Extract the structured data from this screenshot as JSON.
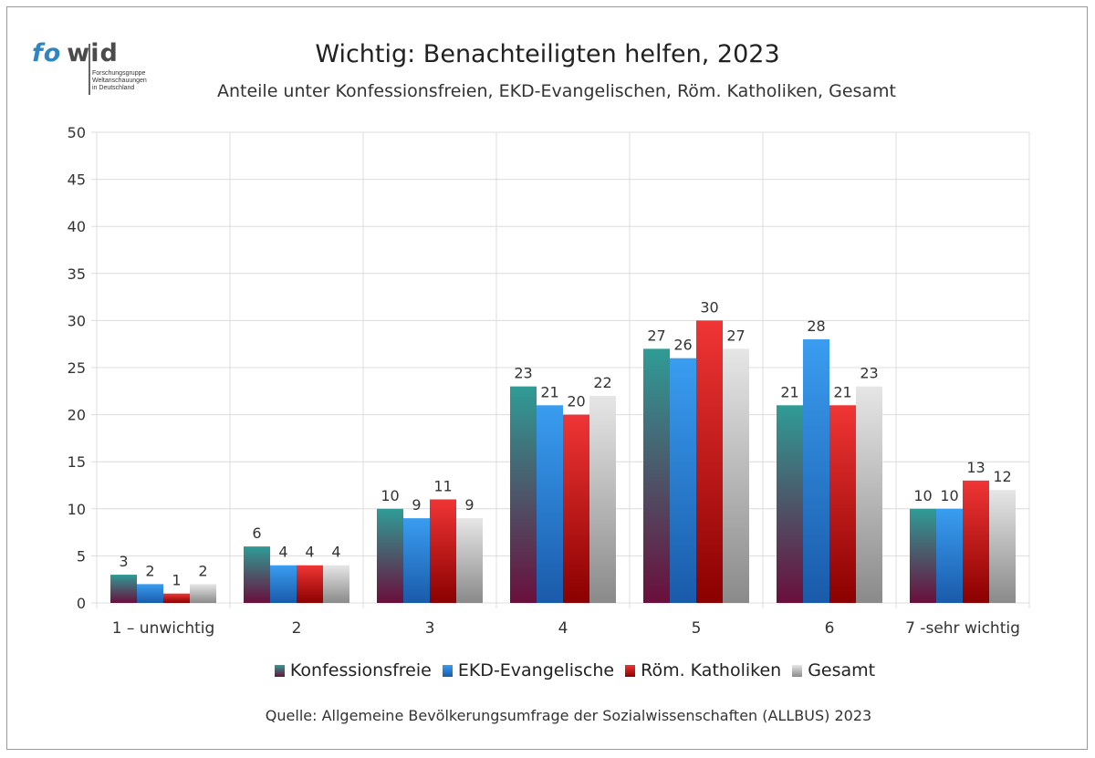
{
  "logo": {
    "word_a": "fo",
    "word_b": "wid",
    "line1": "Forschungsgruppe",
    "line2": "Weltanschauungen",
    "line3": "in Deutschland"
  },
  "header": {
    "title": "Wichtig: Benachteiligten helfen, 2023",
    "subtitle": "Anteile unter Konfessionsfreien, EKD-Evangelischen, Röm. Katholiken, Gesamt"
  },
  "source": "Quelle: Allgemeine Bevölkerungsumfrage der Sozialwissenschaften (ALLBUS) 2023",
  "chart_data": {
    "type": "bar",
    "title": "Wichtig: Benachteiligten helfen, 2023",
    "subtitle": "Anteile unter Konfessionsfreien, EKD-Evangelischen, Röm. Katholiken, Gesamt",
    "categories": [
      "1 – unwichtig",
      "2",
      "3",
      "4",
      "5",
      "6",
      "7 -sehr wichtig"
    ],
    "series": [
      {
        "name": "Konfessionsfreie",
        "color_top": "#2f9c96",
        "color_bottom": "#6a0f3c",
        "values": [
          3,
          6,
          10,
          23,
          27,
          21,
          10
        ]
      },
      {
        "name": "EKD-Evangelische",
        "color_top": "#3a9df0",
        "color_bottom": "#1a5aaa",
        "values": [
          2,
          4,
          9,
          21,
          26,
          28,
          10
        ]
      },
      {
        "name": "Röm. Katholiken",
        "color_top": "#f03535",
        "color_bottom": "#8a0000",
        "values": [
          1,
          4,
          11,
          20,
          30,
          21,
          13
        ]
      },
      {
        "name": "Gesamt",
        "color_top": "#e6e6e6",
        "color_bottom": "#8a8a8a",
        "values": [
          2,
          4,
          9,
          22,
          27,
          23,
          12
        ]
      }
    ],
    "ylim": [
      0,
      50
    ],
    "yticks": [
      0,
      5,
      10,
      15,
      20,
      25,
      30,
      35,
      40,
      45,
      50
    ],
    "grid": true,
    "legend_position": "bottom",
    "xlabel": "",
    "ylabel": ""
  }
}
